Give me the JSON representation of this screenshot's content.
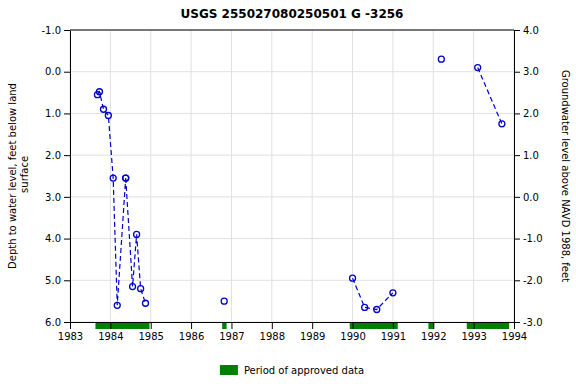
{
  "chart_data": {
    "type": "line",
    "title": "USGS 255027080250501 G  -3256",
    "y_label": "Depth to water level, feet below land\n surface",
    "y2_label": "Groundwater level above NAVD 1988, feet",
    "xlim": [
      1983,
      1994
    ],
    "xticks": [
      1983,
      1984,
      1985,
      1986,
      1987,
      1988,
      1989,
      1990,
      1991,
      1992,
      1993,
      1994
    ],
    "ylim": [
      6.0,
      -1.0
    ],
    "yticks": [
      {
        "value": 6.0,
        "label": "6.0"
      },
      {
        "value": 5.0,
        "label": "5.0"
      },
      {
        "value": 4.0,
        "label": "4.0"
      },
      {
        "value": 3.0,
        "label": "3.0"
      },
      {
        "value": 2.0,
        "label": "2.0"
      },
      {
        "value": 1.0,
        "label": "1.0"
      },
      {
        "value": 0.0,
        "label": "0.0"
      },
      {
        "value": -1.0,
        "label": "-1.0"
      }
    ],
    "y2lim": [
      -3.0,
      4.0
    ],
    "y2ticks": [
      {
        "value": -3.0,
        "label": "-3.0"
      },
      {
        "value": -2.0,
        "label": "-2.0"
      },
      {
        "value": -1.0,
        "label": "-1.0"
      },
      {
        "value": 0.0,
        "label": "0.0"
      },
      {
        "value": 1.0,
        "label": "1.0"
      },
      {
        "value": 2.0,
        "label": "2.0"
      },
      {
        "value": 3.0,
        "label": "3.0"
      },
      {
        "value": 4.0,
        "label": "4.0"
      }
    ],
    "grid": true,
    "legend": "bottom",
    "series": [
      {
        "type": "line",
        "color": "#0000cc",
        "marker": "circle-open",
        "line_style": "dashed",
        "x": [
          1983.68,
          1983.73,
          1983.83,
          1983.95,
          1984.07,
          1984.17,
          1984.38,
          null,
          1984.38,
          1984.55,
          1984.65,
          1984.75,
          1984.87,
          null,
          1986.82,
          null,
          1990.0,
          1990.3,
          1990.6,
          1991.0,
          null,
          1992.2,
          null,
          1993.1,
          1993.7
        ],
        "values": [
          0.55,
          0.48,
          0.9,
          1.05,
          2.55,
          5.6,
          2.55,
          null,
          2.55,
          5.15,
          3.9,
          5.2,
          5.55,
          null,
          5.5,
          null,
          4.95,
          5.65,
          5.7,
          5.3,
          null,
          -0.3,
          null,
          -0.1,
          1.25
        ]
      },
      {
        "type": "span",
        "name": "Period of approved data",
        "color": "#008000",
        "periods": [
          [
            1983.63,
            1984.97
          ],
          [
            1986.77,
            1986.88
          ],
          [
            1989.93,
            1991.12
          ],
          [
            1991.88,
            1992.02
          ],
          [
            1992.83,
            1993.88
          ]
        ]
      }
    ]
  }
}
